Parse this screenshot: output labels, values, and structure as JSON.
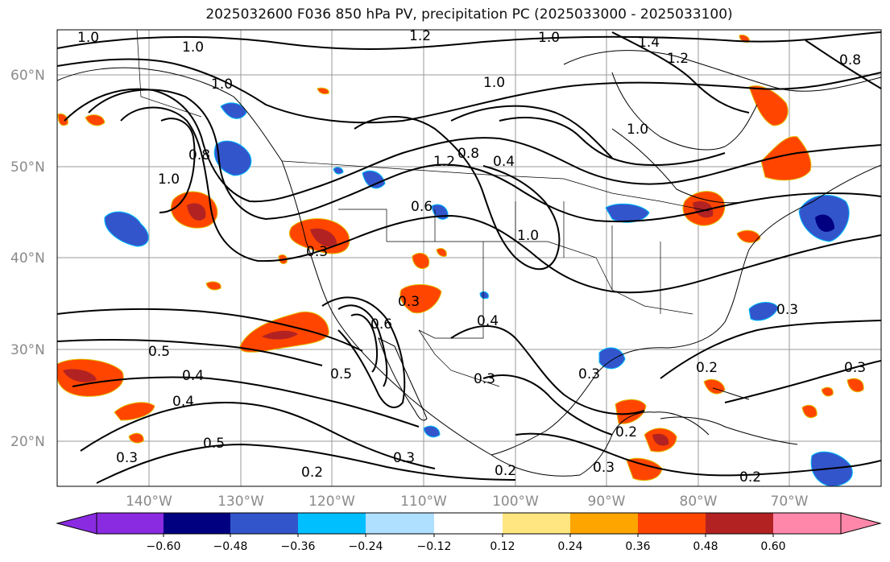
{
  "title": "2025032600 F036 850 hPa PV, precipitation PC (2025033000 - 2025033100)",
  "map": {
    "lat_labels": [
      "60°N",
      "50°N",
      "40°N",
      "30°N",
      "20°N"
    ],
    "lon_labels": [
      "140°W",
      "130°W",
      "120°W",
      "110°W",
      "100°W",
      "90°W",
      "80°W",
      "70°W"
    ],
    "contour_labels": [
      "1.0",
      "1.0",
      "1.2",
      "1.0",
      "1.4",
      "1.2",
      "0.8",
      "1.0",
      "1.0",
      "0.8",
      "1.0",
      "1.2",
      "0.8",
      "0.4",
      "0.6",
      "1.0",
      "1.0",
      "0.3",
      "0.5",
      "0.4",
      "0.4",
      "0.5",
      "0.3",
      "0.6",
      "0.5",
      "0.4",
      "0.3",
      "0.3",
      "0.2",
      "0.3",
      "0.2",
      "0.3",
      "0.2",
      "0.3",
      "0.3",
      "0.2",
      "0.2",
      "0.3"
    ]
  },
  "colorbar": {
    "ticks": [
      "−0.60",
      "−0.48",
      "−0.36",
      "−0.24",
      "−0.12",
      "0.12",
      "0.24",
      "0.36",
      "0.48",
      "0.60"
    ],
    "colors": [
      "#8a2be2",
      "#000080",
      "#3355cc",
      "#00bfff",
      "#b0e0ff",
      "#ffffff",
      "#ffe680",
      "#ffa500",
      "#ff4500",
      "#b22222",
      "#ff88aa"
    ],
    "extend_low_color": "#8a2be2",
    "extend_high_color": "#ff88aa"
  }
}
